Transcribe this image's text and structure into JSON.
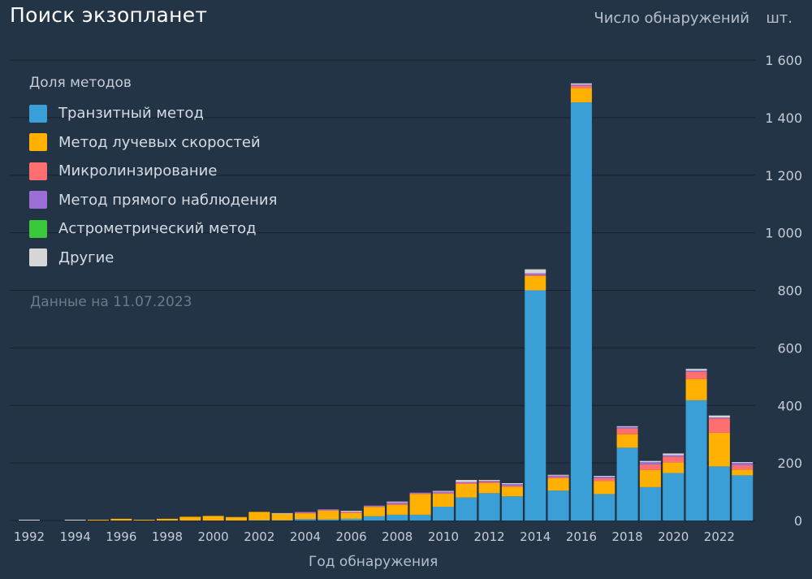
{
  "page": {
    "title": "Поиск экзопланет",
    "y_label": "Число обнаружений",
    "y_unit": "шт.",
    "x_label": "Год обнаружения",
    "note": "Данные на 11.07.2023"
  },
  "legend": {
    "title": "Доля методов",
    "items": [
      {
        "label": "Транзитный метод",
        "color": "#3a9fd6"
      },
      {
        "label": "Метод лучевых скоростей",
        "color": "#ffb000"
      },
      {
        "label": "Микролинзирование",
        "color": "#ff6f6f"
      },
      {
        "label": "Метод прямого наблюдения",
        "color": "#9b6fd6"
      },
      {
        "label": "Астрометрический метод",
        "color": "#3cc83c"
      },
      {
        "label": "Другие",
        "color": "#d6d6d6"
      }
    ]
  },
  "chart_data": {
    "type": "bar",
    "stacked": true,
    "x": [
      1992,
      1993,
      1994,
      1995,
      1996,
      1997,
      1998,
      1999,
      2000,
      2001,
      2002,
      2003,
      2004,
      2005,
      2006,
      2007,
      2008,
      2009,
      2010,
      2011,
      2012,
      2013,
      2014,
      2015,
      2016,
      2017,
      2018,
      2019,
      2020,
      2021,
      2022,
      2023
    ],
    "x_tick_labels": [
      "1992",
      "1994",
      "1996",
      "1998",
      "2000",
      "2002",
      "2004",
      "2006",
      "2008",
      "2010",
      "2012",
      "2014",
      "2016",
      "2018",
      "2020",
      "2022"
    ],
    "y_ticks": [
      "0",
      "200",
      "400",
      "600",
      "800",
      "1 000",
      "1 200",
      "1 400",
      "1 600"
    ],
    "ylim": [
      0,
      1600
    ],
    "grid": true,
    "legend_position": "top-left",
    "series": [
      {
        "name": "Транзитный метод",
        "color": "#3a9fd6",
        "values": [
          0,
          0,
          0,
          0,
          0,
          0,
          0,
          0,
          0,
          0,
          1,
          1,
          5,
          4,
          6,
          15,
          20,
          20,
          48,
          80,
          95,
          84,
          800,
          104,
          1453,
          92,
          253,
          116,
          165,
          418,
          188,
          157
        ]
      },
      {
        "name": "Метод лучевых скоростей",
        "color": "#ffb000",
        "values": [
          0,
          0,
          0,
          1,
          6,
          1,
          6,
          13,
          16,
          12,
          29,
          22,
          20,
          30,
          21,
          32,
          34,
          72,
          45,
          47,
          35,
          34,
          50,
          43,
          50,
          45,
          47,
          60,
          37,
          74,
          117,
          20
        ]
      },
      {
        "name": "Микролинзирование",
        "color": "#ff6f6f",
        "values": [
          0,
          0,
          0,
          0,
          0,
          0,
          0,
          0,
          0,
          0,
          0,
          0,
          2,
          2,
          2,
          2,
          4,
          2,
          2,
          4,
          5,
          3,
          4,
          4,
          8,
          10,
          20,
          19,
          20,
          25,
          50,
          15
        ]
      },
      {
        "name": "Метод прямого наблюдения",
        "color": "#9b6fd6",
        "values": [
          0,
          0,
          0,
          0,
          0,
          0,
          0,
          0,
          0,
          0,
          0,
          0,
          1,
          1,
          2,
          1,
          5,
          3,
          5,
          3,
          3,
          6,
          5,
          5,
          4,
          5,
          5,
          8,
          5,
          4,
          3,
          8
        ]
      },
      {
        "name": "Астрометрический метод",
        "color": "#3cc83c",
        "values": [
          0,
          0,
          0,
          0,
          0,
          0,
          0,
          0,
          0,
          0,
          0,
          0,
          0,
          0,
          0,
          0,
          0,
          0,
          0,
          0,
          0,
          0,
          0,
          0,
          0,
          0,
          0,
          0,
          0,
          0,
          0,
          0
        ]
      },
      {
        "name": "Другие",
        "color": "#d6d6d6",
        "values": [
          2,
          0,
          1,
          0,
          0,
          0,
          0,
          0,
          0,
          0,
          0,
          1,
          0,
          0,
          1,
          0,
          1,
          0,
          2,
          7,
          3,
          2,
          14,
          2,
          4,
          3,
          2,
          4,
          6,
          6,
          7,
          3
        ]
      }
    ]
  }
}
